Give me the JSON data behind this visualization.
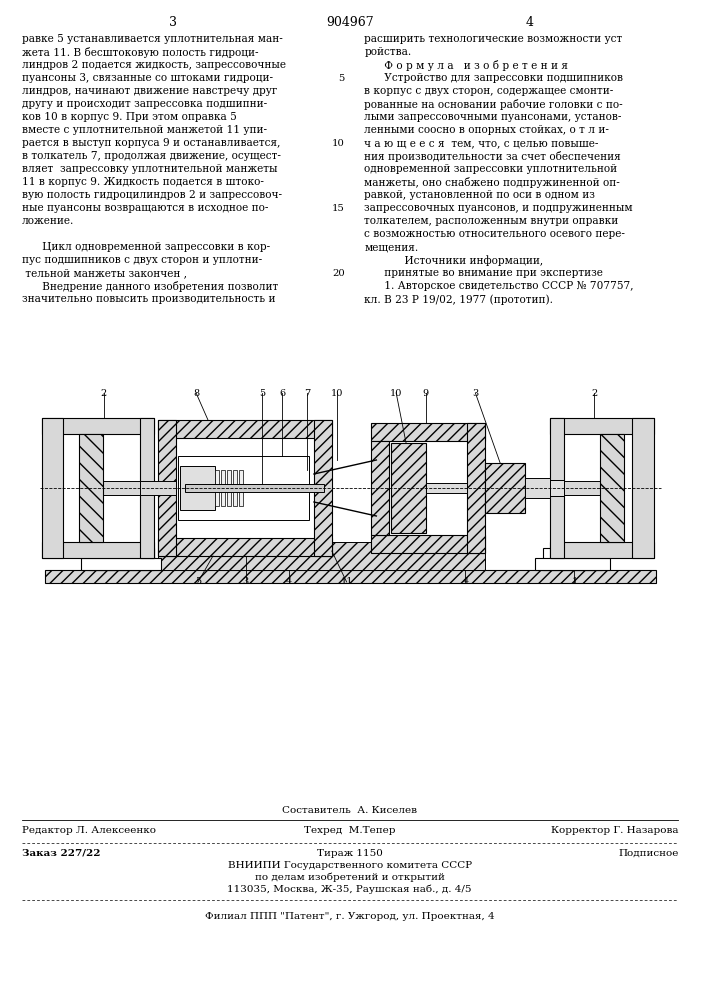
{
  "page_number_left": "3",
  "patent_number": "904967",
  "page_number_right": "4",
  "left_column_text": [
    "равке 5 устанавливается уплотнительная ман-",
    "жета 11. В бесштоковую полость гидроци-",
    "линдров 2 подается жидкость, запрессовочные",
    "пуансоны 3, связанные со штоками гидроци-",
    "линдров, начинают движение навстречу друг",
    "другу и происходит запрессовка подшипни-",
    "ков 10 в корпус 9. При этом оправка 5",
    "вместе с уплотнительной манжетой 11 упи-",
    "рается в выступ корпуса 9 и останавливается,",
    "в толкатель 7, продолжая движение, осущест-",
    "вляет  запрессовку уплотнительной манжеты",
    "11 в корпус 9. Жидкость подается в штоко-",
    "вую полость гидроцилиндров 2 и запрессовоч-",
    "ные пуансоны возвращаются в исходное по-",
    "ложение.",
    "",
    "      Цикл одновременной запрессовки в кор-",
    "пус подшипников с двух сторон и уплотни-",
    " тельной манжеты закончен ,",
    "      Внедрение данного изобретения позволит",
    "значительно повысить производительность и"
  ],
  "right_column_text": [
    "расширить технологические возможности уст",
    "ройства.",
    "      Ф о р м у л а   и з о б р е т е н и я",
    "      Устройство для запрессовки подшипников",
    "в корпус с двух сторон, содержащее смонти-",
    "рованные на основании рабочие головки с по-",
    "лыми запрессовочными пуансонами, установ-",
    "ленными соосно в опорных стойках, о т л и-",
    "ч а ю щ е е с я  тем, что, с целью повыше-",
    "ния производительности за счет обеспечения",
    "одновременной запрессовки уплотнительной",
    "манжеты, оно снабжено подпружиненной оп-",
    "равкой, установленной по оси в одном из",
    "запрессовочных пуансонов, и подпружиненным",
    "толкателем, расположенным внутри оправки",
    "с возможностью относительного осевого пере-",
    "мещения.",
    "            Источники информации,",
    "      принятые во внимание при экспертизе",
    "      1. Авторское свидетельство СССР № 707757,",
    "кл. В 23 Р 19/02, 1977 (прототип)."
  ],
  "footer_editor": "Редактор Л. Алексеенко",
  "footer_composer": "Составитель  А. Киселев",
  "footer_tech": "Техред  М.Тепер",
  "footer_corrector": "Корректор Г. Назарова",
  "footer_order": "Заказ 227/22",
  "footer_circulation": "Тираж 1150",
  "footer_subscription": "Подписное",
  "footer_vniip1": "ВНИИПИ Государственного комитета СССР",
  "footer_vniip2": "по делам изобретений и открытий",
  "footer_vniip3": "113035, Москва, Ж-35, Раушская наб., д. 4/5",
  "footer_filial": "Филиал ППП \"Патент\", г. Ужгород, ул. Проектная, 4",
  "bg_color": "#ffffff",
  "text_color": "#000000"
}
